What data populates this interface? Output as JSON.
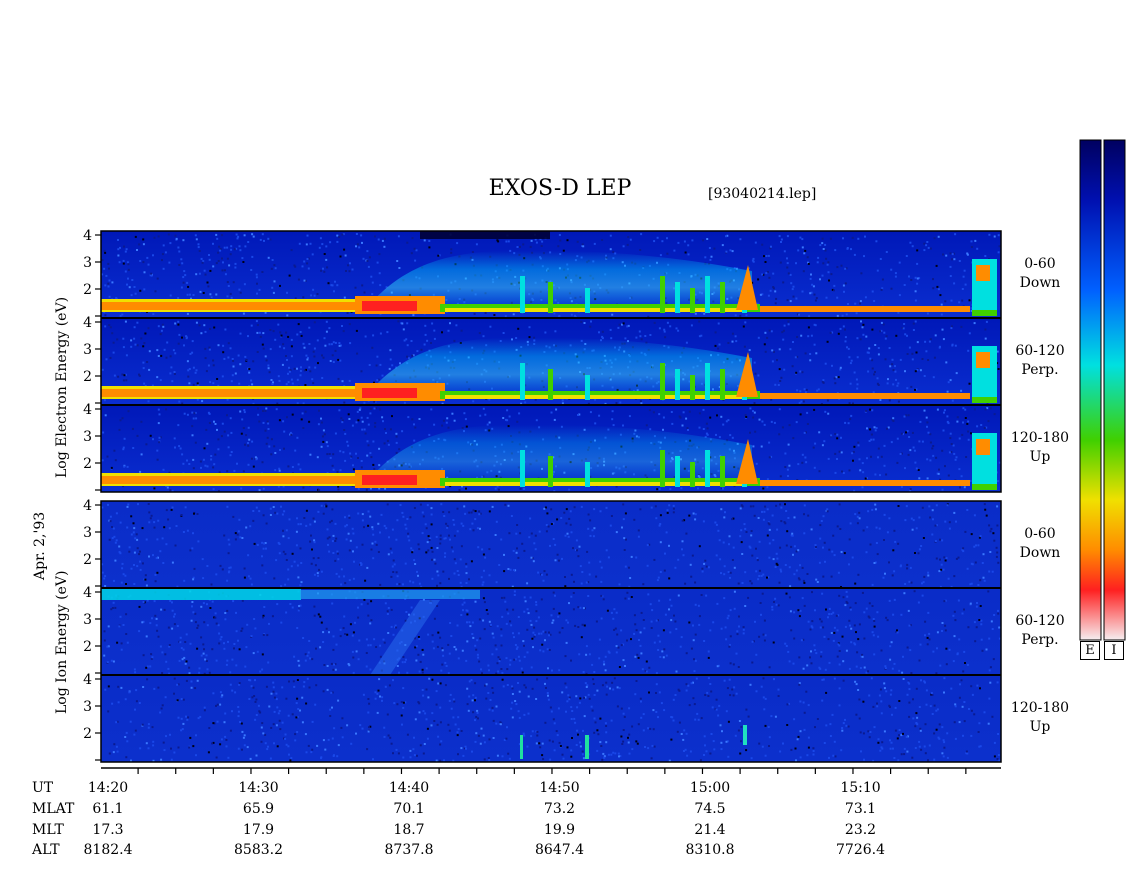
{
  "title": "EXOS-D LEP",
  "file_label": "[93040214.lep]",
  "date_label": "Apr. 2,'93",
  "electron_axis_label": "Log  Electron  Energy  (eV)",
  "ion_axis_label": "Log  Ion  Energy  (eV)",
  "panels": [
    {
      "top": "0-60",
      "bottom": "Down"
    },
    {
      "top": "60-120",
      "bottom": "Perp."
    },
    {
      "top": "120-180",
      "bottom": "Up"
    },
    {
      "top": "0-60",
      "bottom": "Down"
    },
    {
      "top": "60-120",
      "bottom": "Perp."
    },
    {
      "top": "120-180",
      "bottom": "Up"
    }
  ],
  "colorbar_labels": [
    "E",
    "I"
  ],
  "colors": {
    "scale": [
      "#f6eef0",
      "#ff2020",
      "#ff8c00",
      "#f0e000",
      "#40d000",
      "#00e0e0",
      "#0060ff",
      "#0010b0",
      "#000060"
    ],
    "background": "#ffffff"
  },
  "chart_data": {
    "type": "heatmap",
    "title": "EXOS-D LEP",
    "y_ticks": [
      "1",
      "2",
      "3",
      "4"
    ],
    "ylim": [
      1,
      4
    ],
    "x_ticks": [
      "14:20",
      "14:30",
      "14:40",
      "14:50",
      "15:00",
      "15:10"
    ],
    "x_range_minutes": [
      0,
      60
    ],
    "rows": [
      {
        "name": "UT",
        "values": [
          "14:20",
          "14:30",
          "14:40",
          "14:50",
          "15:00",
          "15:10"
        ]
      },
      {
        "name": "MLAT",
        "values": [
          "61.1",
          "65.9",
          "70.1",
          "73.2",
          "74.5",
          "73.1"
        ]
      },
      {
        "name": "MLT",
        "values": [
          "17.3",
          "17.9",
          "18.7",
          "19.9",
          "21.4",
          "23.2"
        ]
      },
      {
        "name": "ALT",
        "values": [
          "8182.4",
          "8583.2",
          "8737.8",
          "8647.4",
          "8310.8",
          "7726.4"
        ]
      }
    ]
  }
}
